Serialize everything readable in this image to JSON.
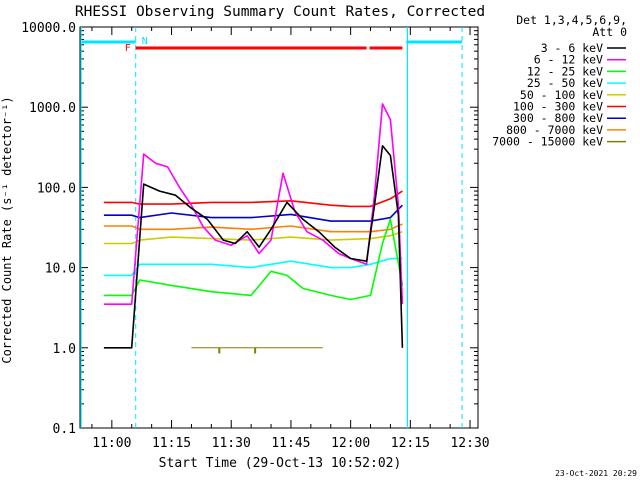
{
  "chart_data": {
    "type": "line",
    "title": "RHESSI Observing Summary Count Rates, Corrected",
    "xlabel": "Start Time (29-Oct-13 10:52:02)",
    "ylabel": "Corrected Count Rate (s⁻¹ detector⁻¹)",
    "y_scale": "log",
    "ylim": [
      0.1,
      10000
    ],
    "xlim": [
      "10:52",
      "12:32"
    ],
    "x_ticks": [
      "11:00",
      "11:15",
      "11:30",
      "11:45",
      "12:00",
      "12:15",
      "12:30"
    ],
    "y_ticks": [
      "0.1",
      "1.0",
      "10.0",
      "100.0",
      "1000.0",
      "10000.0"
    ],
    "legend_header": [
      "Det 1,3,4,5,6,9,",
      "Att 0"
    ],
    "legend_position": "right-outside",
    "footer_date": "23-Oct-2021 20:29",
    "flags": {
      "F_label": "F",
      "N_label": "N"
    },
    "series": [
      {
        "name": "3 - 6 keV",
        "color": "#000000",
        "x": [
          "10:58",
          "11:05",
          "11:08",
          "11:12",
          "11:16",
          "11:20",
          "11:24",
          "11:28",
          "11:31",
          "11:34",
          "11:37",
          "11:40",
          "11:44",
          "11:48",
          "11:52",
          "11:56",
          "12:00",
          "12:04",
          "12:06",
          "12:08",
          "12:10",
          "12:12",
          "12:13"
        ],
        "y": [
          1.0,
          1.0,
          110,
          90,
          80,
          55,
          40,
          22,
          20,
          28,
          18,
          30,
          65,
          40,
          28,
          18,
          13,
          12,
          60,
          330,
          250,
          45,
          1.0
        ]
      },
      {
        "name": "6 - 12 keV",
        "color": "#ff00ff",
        "x": [
          "10:58",
          "11:05",
          "11:08",
          "11:11",
          "11:14",
          "11:17",
          "11:20",
          "11:23",
          "11:26",
          "11:30",
          "11:34",
          "11:37",
          "11:40",
          "11:43",
          "11:46",
          "11:49",
          "11:53",
          "11:57",
          "12:00",
          "12:04",
          "12:06",
          "12:08",
          "12:10",
          "12:12",
          "12:13"
        ],
        "y": [
          3.5,
          3.5,
          260,
          200,
          180,
          100,
          60,
          32,
          22,
          19,
          25,
          15,
          22,
          150,
          50,
          28,
          22,
          15,
          13,
          11,
          80,
          1100,
          700,
          60,
          3.5
        ]
      },
      {
        "name": "12 - 25 keV",
        "color": "#00ff00",
        "x": [
          "10:58",
          "11:05",
          "11:07",
          "11:15",
          "11:25",
          "11:35",
          "11:40",
          "11:44",
          "11:48",
          "11:55",
          "12:00",
          "12:05",
          "12:08",
          "12:10",
          "12:13"
        ],
        "y": [
          4.5,
          4.5,
          7,
          6,
          5,
          4.5,
          9,
          8,
          5.5,
          4.5,
          4,
          4.5,
          20,
          40,
          6
        ]
      },
      {
        "name": "25 - 50 keV",
        "color": "#00ffff",
        "x": [
          "10:58",
          "11:05",
          "11:07",
          "11:15",
          "11:25",
          "11:35",
          "11:40",
          "11:45",
          "11:50",
          "11:55",
          "12:00",
          "12:05",
          "12:10",
          "12:13"
        ],
        "y": [
          8,
          8,
          11,
          11,
          11,
          10,
          11,
          12,
          11,
          10,
          10,
          11,
          13,
          13
        ]
      },
      {
        "name": "50 - 100 keV",
        "color": "#cccc00",
        "x": [
          "10:58",
          "11:05",
          "11:07",
          "11:15",
          "11:25",
          "11:35",
          "11:45",
          "11:55",
          "12:05",
          "12:10",
          "12:13"
        ],
        "y": [
          20,
          20,
          22,
          24,
          23,
          22,
          24,
          22,
          23,
          25,
          28
        ]
      },
      {
        "name": "100 - 300 keV",
        "color": "#ff0000",
        "x": [
          "10:58",
          "11:05",
          "11:07",
          "11:15",
          "11:25",
          "11:35",
          "11:45",
          "11:55",
          "12:00",
          "12:05",
          "12:10",
          "12:13"
        ],
        "y": [
          65,
          65,
          62,
          62,
          65,
          65,
          68,
          60,
          58,
          58,
          72,
          90
        ]
      },
      {
        "name": "300 - 800 keV",
        "color": "#0000cc",
        "x": [
          "10:58",
          "11:05",
          "11:07",
          "11:15",
          "11:25",
          "11:35",
          "11:45",
          "11:55",
          "12:05",
          "12:10",
          "12:13"
        ],
        "y": [
          45,
          45,
          42,
          48,
          42,
          42,
          46,
          38,
          38,
          42,
          60
        ]
      },
      {
        "name": "800 - 7000 keV",
        "color": "#ff8000",
        "x": [
          "10:58",
          "11:05",
          "11:07",
          "11:15",
          "11:25",
          "11:35",
          "11:45",
          "11:55",
          "12:05",
          "12:10",
          "12:13"
        ],
        "y": [
          33,
          33,
          30,
          30,
          32,
          30,
          33,
          28,
          28,
          30,
          35
        ]
      },
      {
        "name": "7000 - 15000 keV",
        "color": "#808000",
        "x": [
          "11:20",
          "11:22",
          "11:24",
          "11:30",
          "11:35",
          "11:40",
          "11:45",
          "11:50",
          "11:53"
        ],
        "y": [
          1.0,
          1.0,
          1.0,
          1.0,
          1.0,
          1.0,
          1.0,
          1.0,
          1.0
        ]
      }
    ]
  }
}
